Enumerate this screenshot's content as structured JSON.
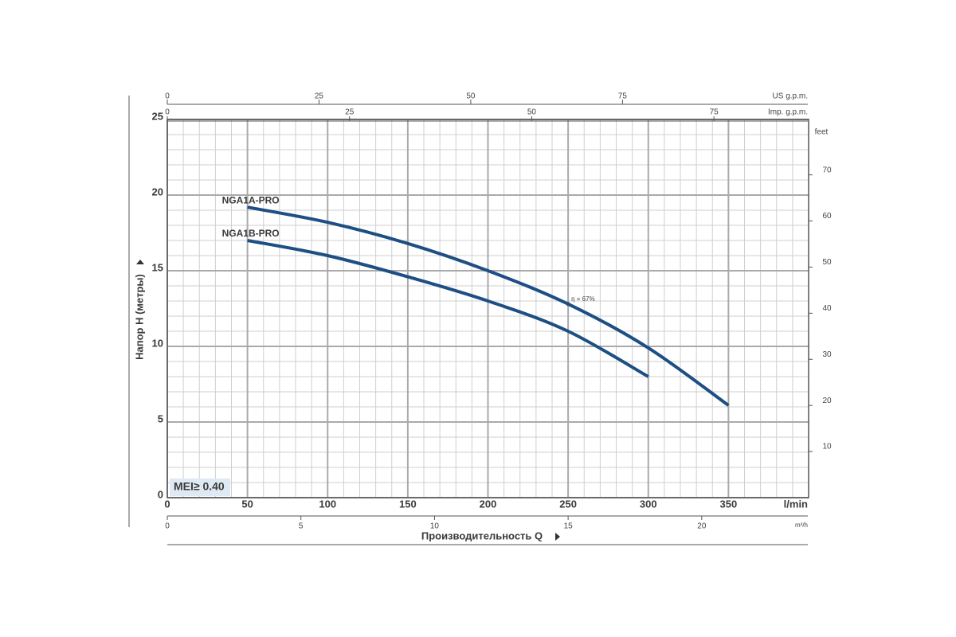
{
  "chart_data": {
    "type": "line",
    "xlabel": "Производительность Q",
    "ylabel": "Напор H (метры)",
    "xunit": "l/min",
    "xlim": [
      0,
      400
    ],
    "xticks": [
      0,
      50,
      100,
      150,
      200,
      250,
      300,
      350
    ],
    "ylim": [
      0,
      25
    ],
    "yticks": [
      0,
      5,
      10,
      15,
      20,
      25
    ],
    "xticks_minor": [
      0,
      10,
      20,
      30,
      40,
      50,
      60,
      70,
      80,
      90,
      100,
      110,
      120,
      130,
      140,
      150,
      160,
      170,
      180,
      190,
      200,
      210,
      220,
      230,
      240,
      250,
      260,
      270,
      280,
      290,
      300,
      310,
      320,
      330,
      340,
      350,
      360,
      370,
      380,
      390,
      400
    ],
    "yticks_minor": [
      0,
      1,
      2,
      3,
      4,
      5,
      6,
      7,
      8,
      9,
      10,
      11,
      12,
      13,
      14,
      15,
      16,
      17,
      18,
      19,
      20,
      21,
      22,
      23,
      24,
      25
    ],
    "y2label": "feet",
    "y2lim": [
      0,
      82.02
    ],
    "y2ticks": [
      10,
      20,
      30,
      40,
      50,
      60,
      70
    ],
    "top_axes": [
      {
        "label": "US g.p.m.",
        "xlim": [
          0,
          105.67
        ],
        "xticks": [
          0,
          25,
          50,
          75
        ]
      },
      {
        "label": "Imp. g.p.m.",
        "xlim": [
          0,
          87.99
        ],
        "xticks": [
          0,
          25,
          50,
          75
        ]
      }
    ],
    "bottom_axis": {
      "label": "m³/h",
      "xlim": [
        0,
        24
      ],
      "xticks": [
        0,
        5,
        10,
        15,
        20
      ]
    },
    "badge": "MEI≥ 0.40",
    "grid": true,
    "series": [
      {
        "name": "NGA1A-PRO",
        "color": "#1d4f84",
        "x": [
          50,
          100,
          150,
          200,
          250,
          300,
          350
        ],
        "values": [
          19.2,
          18.2,
          16.8,
          15.0,
          12.8,
          9.9,
          6.1
        ]
      },
      {
        "name": "NGA1B-PRO",
        "color": "#1d4f84",
        "x": [
          50,
          100,
          150,
          200,
          250,
          300
        ],
        "values": [
          17.0,
          16.0,
          14.6,
          13.0,
          11.0,
          8.0
        ]
      }
    ],
    "annotations": [
      {
        "text": "η = 67%",
        "x": 250,
        "y": 12.8
      }
    ]
  }
}
